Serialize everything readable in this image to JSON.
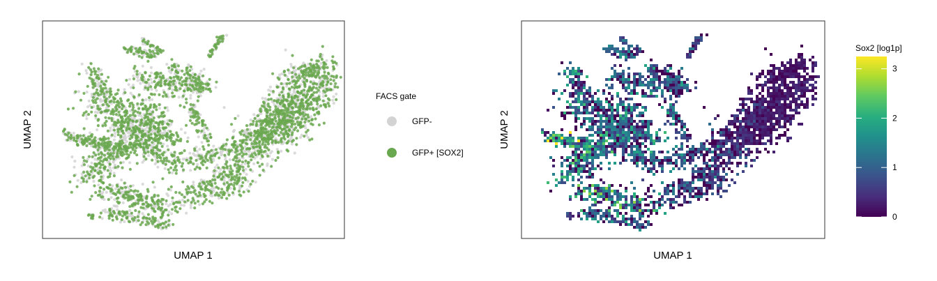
{
  "chart_data": [
    {
      "type": "scatter",
      "title": "",
      "xlabel": "UMAP 1",
      "ylabel": "UMAP 2",
      "axis_ticks": "none",
      "grid": false,
      "legend": {
        "title": "FACS gate",
        "placement": "right",
        "entries": [
          {
            "name": "GFP-",
            "color": "#d3d3d3"
          },
          {
            "name": "GFP+ [SOX2]",
            "color": "#6aa84f"
          }
        ]
      },
      "series": [
        {
          "name": "GFP-",
          "color": "#d3d3d3"
        },
        {
          "name": "GFP+ [SOX2]",
          "color": "#6aa84f"
        }
      ]
    },
    {
      "type": "heatmap",
      "title": "",
      "xlabel": "UMAP 1",
      "ylabel": "UMAP 2",
      "axis_ticks": "none",
      "grid": false,
      "colorbar": {
        "title": "Sox2 [log1p]",
        "placement": "right",
        "colormap": "viridis",
        "ticks": [
          0,
          1,
          2,
          3
        ],
        "range": [
          0,
          3.25
        ]
      }
    }
  ],
  "colors": {
    "gfp_neg": "#d3d3d3",
    "gfp_pos": "#6aa84f",
    "frame": "#333333"
  }
}
